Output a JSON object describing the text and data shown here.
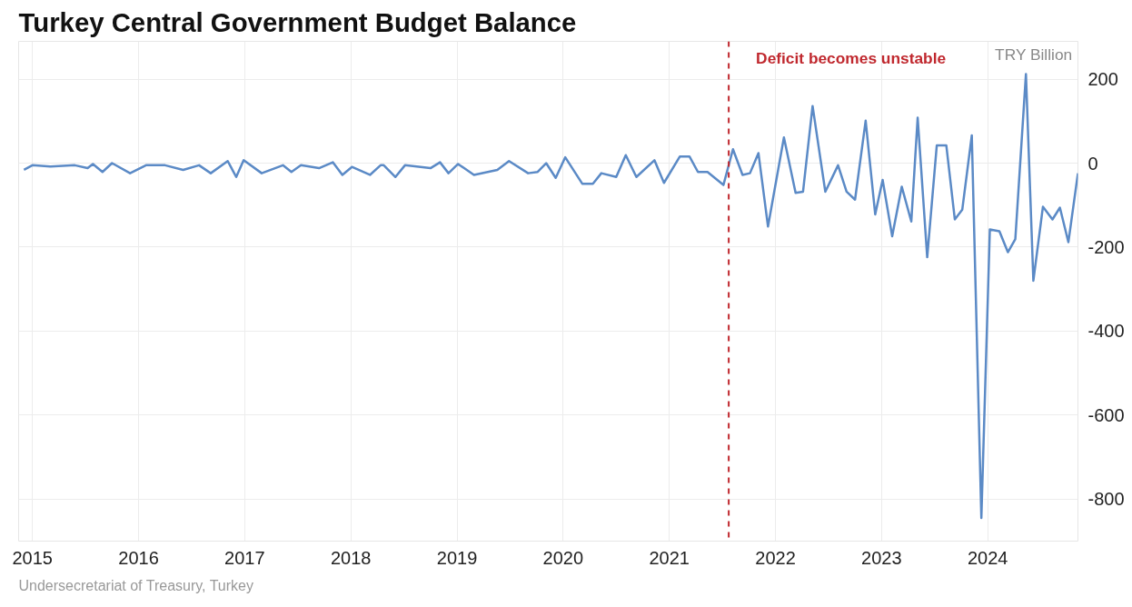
{
  "chart_data": {
    "type": "line",
    "title": "Turkey Central Government Budget Balance",
    "ylabel": "TRY Billion",
    "annotations": [
      "Undersecretariat of Treasury, Turkey"
    ],
    "x": [
      2014.92,
      2015.0,
      2015.17,
      2015.4,
      2015.52,
      2015.57,
      2015.66,
      2015.75,
      2015.92,
      2016.07,
      2016.25,
      2016.42,
      2016.57,
      2016.68,
      2016.84,
      2016.92,
      2016.99,
      2017.16,
      2017.36,
      2017.44,
      2017.53,
      2017.7,
      2017.83,
      2017.92,
      2018.01,
      2018.18,
      2018.28,
      2018.31,
      2018.42,
      2018.51,
      2018.75,
      2018.84,
      2018.92,
      2019.01,
      2019.16,
      2019.38,
      2019.49,
      2019.67,
      2019.76,
      2019.84,
      2019.93,
      2020.02,
      2020.18,
      2020.28,
      2020.36,
      2020.5,
      2020.59,
      2020.69,
      2020.86,
      2020.95,
      2021.1,
      2021.19,
      2021.27,
      2021.36,
      2021.51,
      2021.6,
      2021.69,
      2021.76,
      2021.84,
      2021.93,
      2022.08,
      2022.19,
      2022.26,
      2022.35,
      2022.47,
      2022.59,
      2022.67,
      2022.75,
      2022.85,
      2022.94,
      2023.01,
      2023.1,
      2023.19,
      2023.28,
      2023.34,
      2023.43,
      2023.52,
      2023.61,
      2023.69,
      2023.76,
      2023.85,
      2023.94,
      2024.02,
      2024.11,
      2024.19,
      2024.26,
      2024.36,
      2024.43,
      2024.52,
      2024.61,
      2024.68,
      2024.76,
      2024.85
    ],
    "series": [
      {
        "color": "#5b8ac6",
        "values": [
          -16,
          -5,
          -8,
          -5,
          -12,
          -2,
          -21,
          0,
          -24,
          -5,
          -5,
          -16,
          -5,
          -24,
          5,
          -33,
          7,
          -24,
          -5,
          -21,
          -5,
          -12,
          2,
          -28,
          -9,
          -28,
          -5,
          -5,
          -33,
          -5,
          -12,
          2,
          -24,
          -2,
          -28,
          -16,
          5,
          -24,
          -21,
          0,
          -35,
          14,
          -49,
          -49,
          -24,
          -33,
          19,
          -33,
          7,
          -47,
          16,
          16,
          -21,
          -21,
          -52,
          33,
          -28,
          -24,
          24,
          -151,
          61,
          -71,
          -68,
          136,
          -68,
          -5,
          -68,
          -87,
          101,
          -122,
          -40,
          -174,
          -56,
          -139,
          108,
          -224,
          42,
          42,
          -134,
          -111,
          66,
          -845,
          -158,
          -162,
          -212,
          -181,
          212,
          -280,
          -104,
          -134,
          -106,
          -188,
          -24
        ]
      }
    ],
    "xlim": [
      2014.87,
      2024.85
    ],
    "ylim": [
      -900,
      290
    ],
    "xticks": [
      2015,
      2016,
      2017,
      2018,
      2019,
      2020,
      2021,
      2022,
      2023,
      2024
    ],
    "yticks": [
      -800,
      -600,
      -400,
      -200,
      0,
      200
    ],
    "ref_lines": [
      {
        "axis": "x",
        "value": 2021.56,
        "label": "Deficit becomes unstable",
        "color": "#c0282e",
        "line_style": "dashed"
      }
    ],
    "grid": true,
    "marker": "none",
    "line_style": "solid"
  }
}
